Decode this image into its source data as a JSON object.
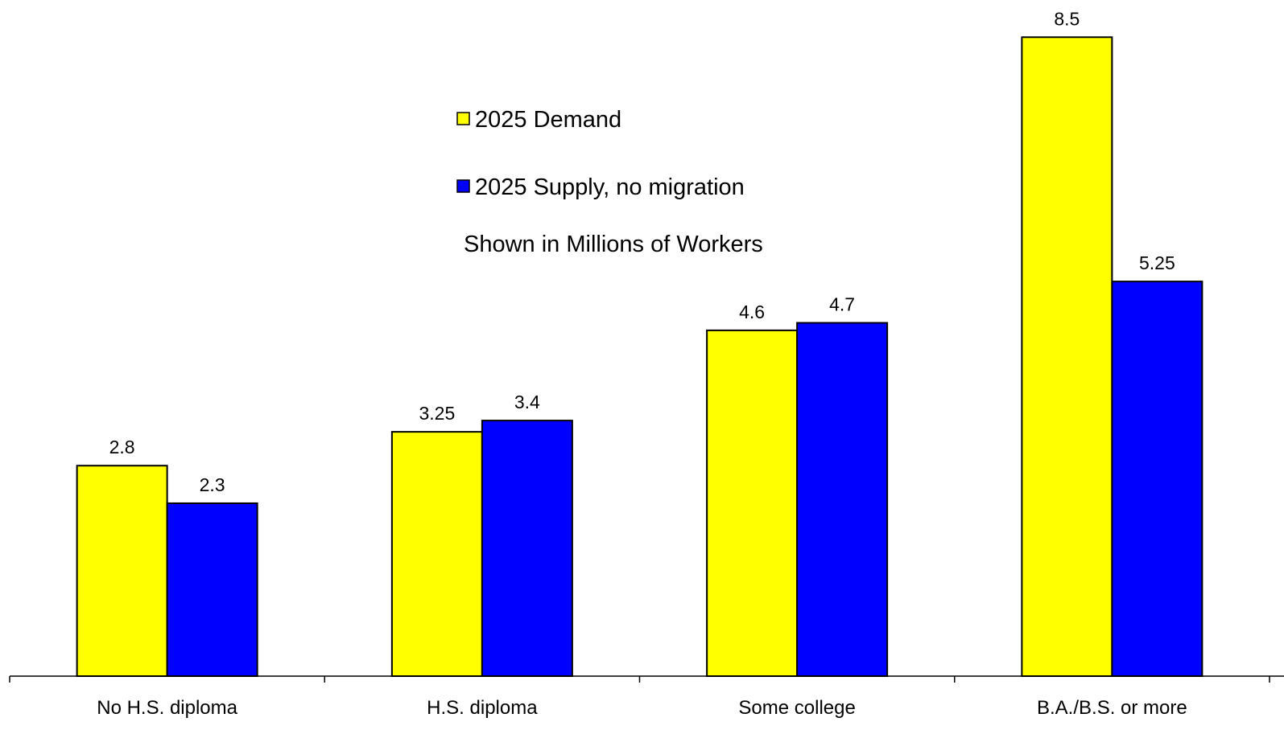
{
  "chart_data": {
    "type": "bar",
    "title": "",
    "subtitle": "",
    "xlabel": "",
    "ylabel": "",
    "categories": [
      "No H.S. diploma",
      "H.S. diploma",
      "Some college",
      "B.A./B.S. or more"
    ],
    "series": [
      {
        "name": "2025 Demand",
        "color": "#FFFF00",
        "values": [
          2.8,
          3.25,
          4.6,
          8.5
        ],
        "labels": [
          "2.8",
          "3.25",
          "4.6",
          "8.5"
        ]
      },
      {
        "name": "2025 Supply, no migration",
        "color": "#0000FF",
        "values": [
          2.3,
          3.4,
          4.7,
          5.25
        ],
        "labels": [
          "2.3",
          "3.4",
          "4.7",
          "5.25"
        ]
      }
    ],
    "annotation": "Shown in Millions of Workers",
    "ylim": [
      0,
      9
    ],
    "grid": false,
    "legend_position": "top-center",
    "show_y_axis": false
  }
}
